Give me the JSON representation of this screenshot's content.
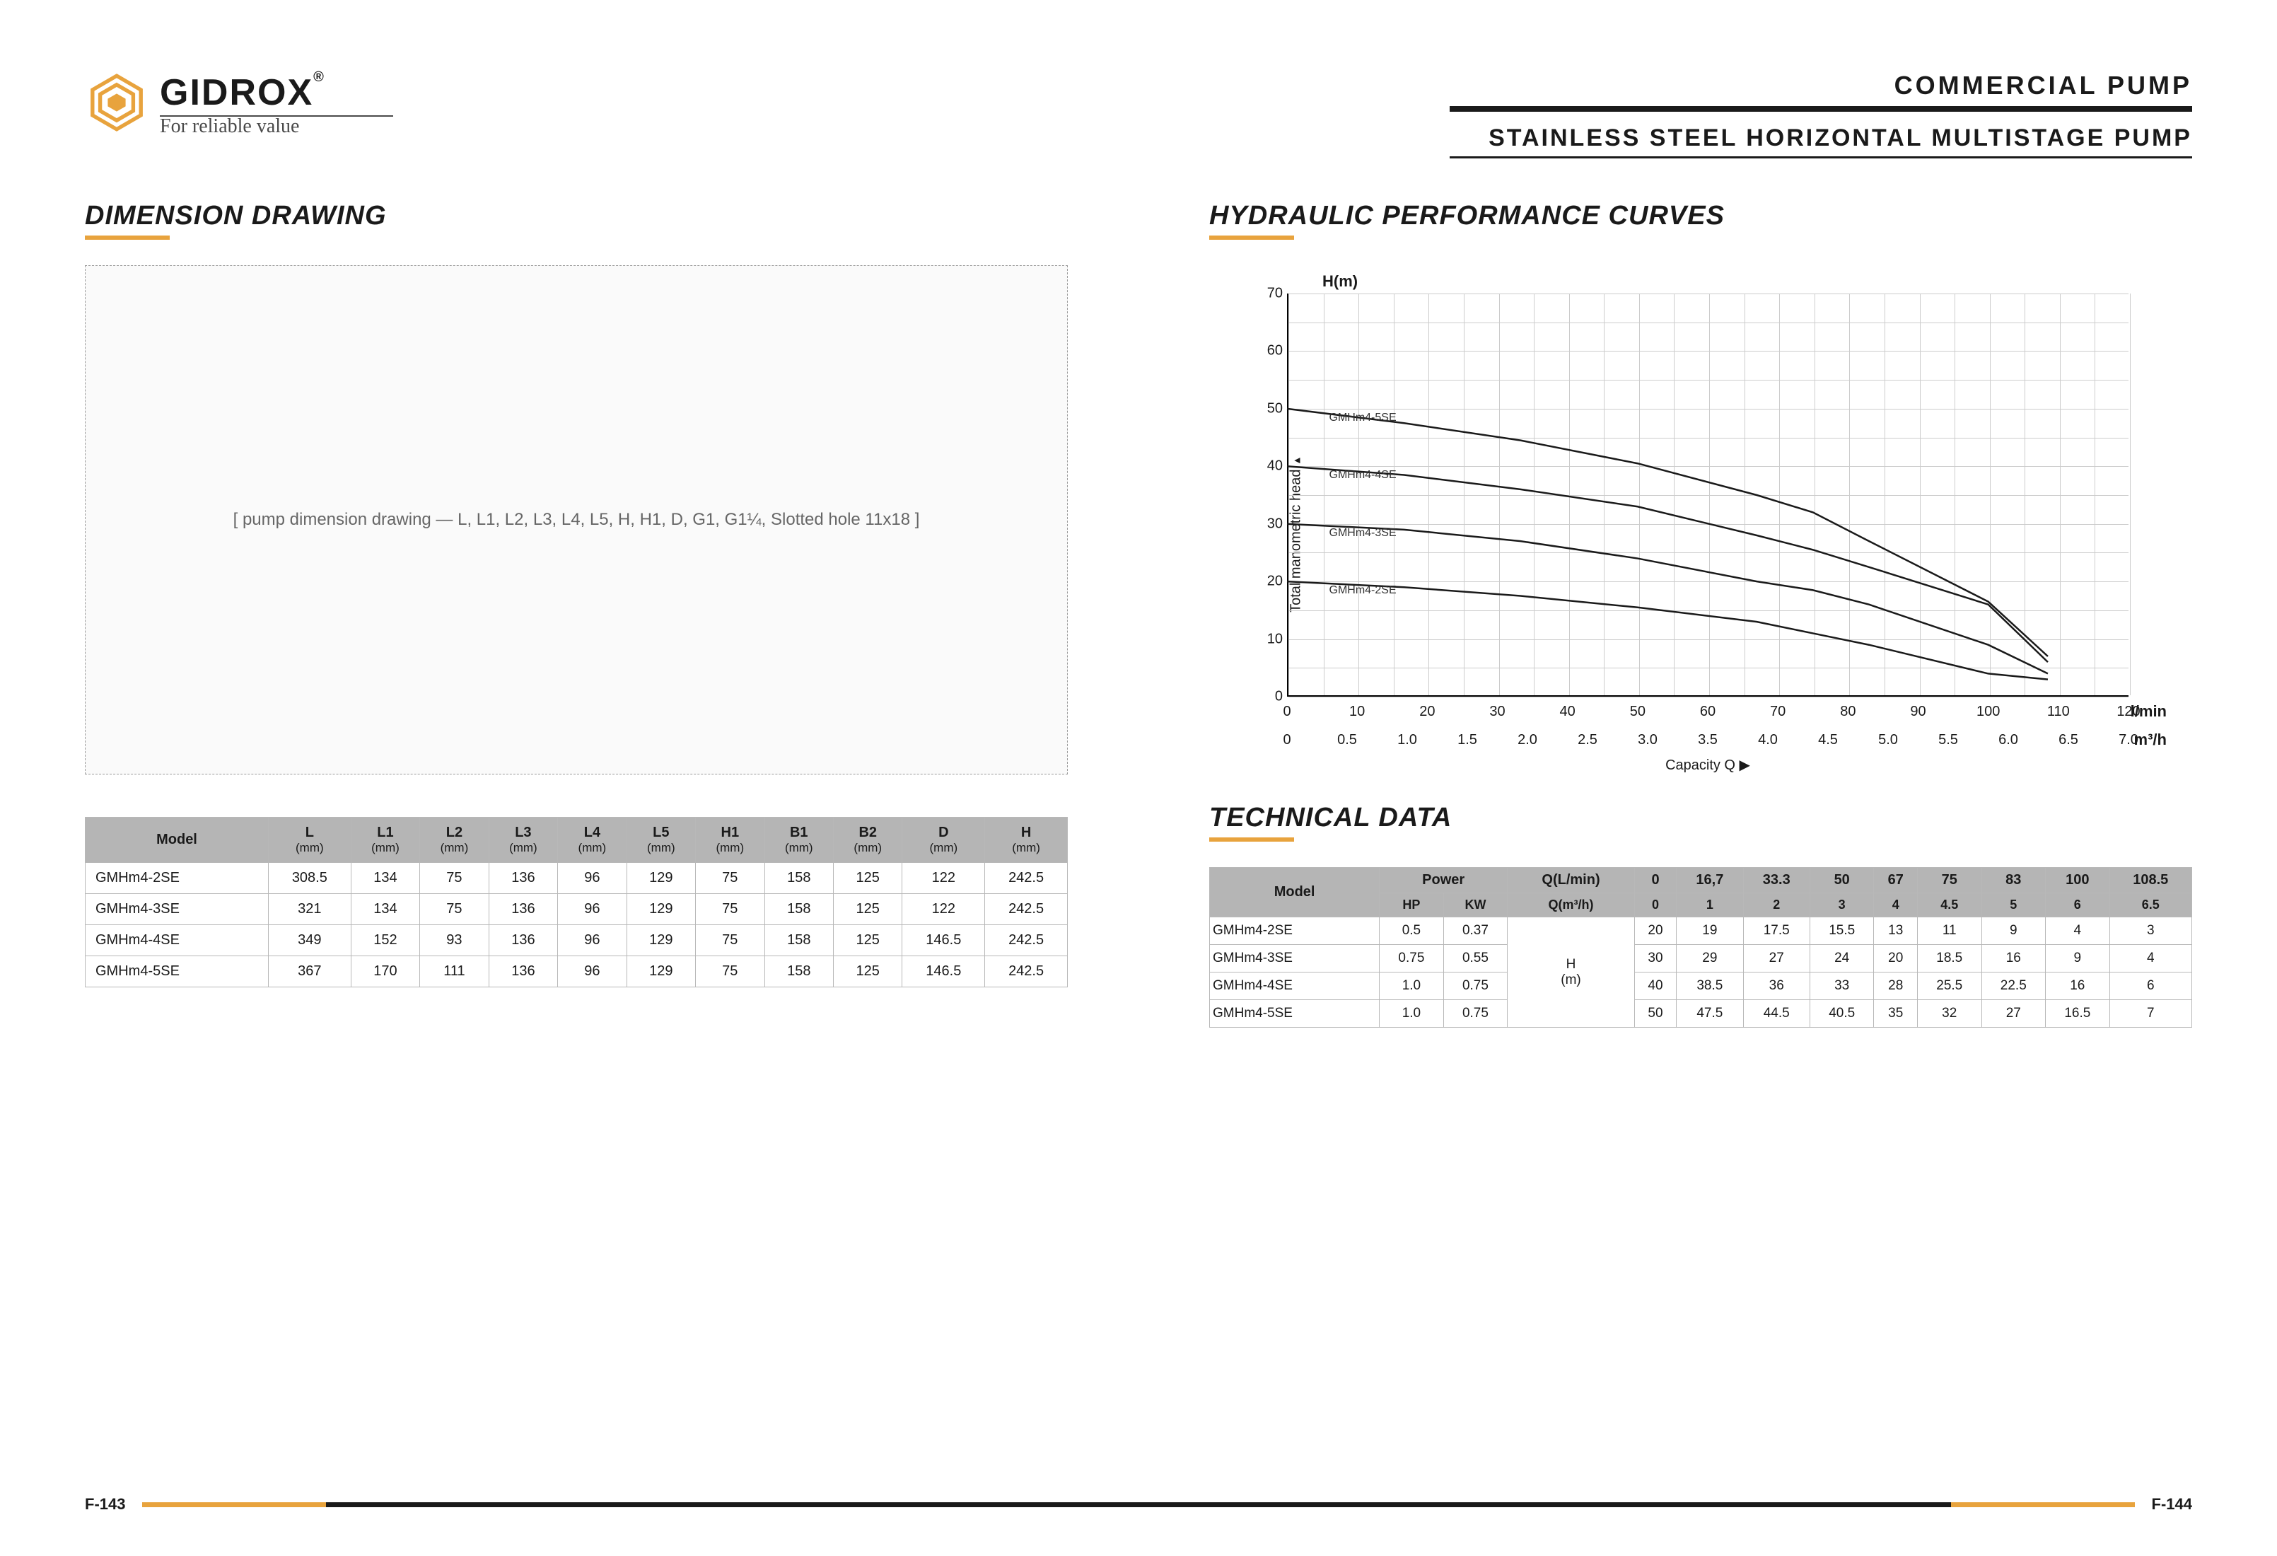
{
  "brand": {
    "name": "GIDROX",
    "reg": "®",
    "tagline": "For reliable value"
  },
  "header": {
    "category": "COMMERCIAL  PUMP",
    "subtitle": "STAINLESS STEEL HORIZONTAL  MULTISTAGE  PUMP"
  },
  "accent_color": "#e8a33d",
  "left": {
    "title": "DIMENSION DRAWING",
    "drawing_note": "[ pump dimension drawing — L, L1, L2, L3, L4, L5, H, H1, D, G1, G1¼, Slotted hole 11x18 ]",
    "table": {
      "columns": [
        "Model",
        "L",
        "L1",
        "L2",
        "L3",
        "L4",
        "L5",
        "H1",
        "B1",
        "B2",
        "D",
        "H"
      ],
      "unit": "(mm)",
      "rows": [
        [
          "GMHm4-2SE",
          "308.5",
          "134",
          "75",
          "136",
          "96",
          "129",
          "75",
          "158",
          "125",
          "122",
          "242.5"
        ],
        [
          "GMHm4-3SE",
          "321",
          "134",
          "75",
          "136",
          "96",
          "129",
          "75",
          "158",
          "125",
          "122",
          "242.5"
        ],
        [
          "GMHm4-4SE",
          "349",
          "152",
          "93",
          "136",
          "96",
          "129",
          "75",
          "158",
          "125",
          "146.5",
          "242.5"
        ],
        [
          "GMHm4-5SE",
          "367",
          "170",
          "111",
          "136",
          "96",
          "129",
          "75",
          "158",
          "125",
          "146.5",
          "242.5"
        ]
      ]
    }
  },
  "right": {
    "title": "HYDRAULIC PERFORMANCE CURVES",
    "chart": {
      "ytitle": "H(m)",
      "ylabel": "Total manometric head",
      "ylim": [
        0,
        70
      ],
      "ytick_step": 10,
      "x1_label": "l/min",
      "x1_lim": [
        0,
        120
      ],
      "x1_step": 10,
      "x2_label": "m³/h",
      "x2_lim": [
        0,
        7
      ],
      "x2_step": 0.5,
      "xaxis_caption": "Capacity Q  ▶",
      "grid_color": "#cccccc",
      "line_color": "#1a1a1a",
      "series": [
        {
          "name": "GMHm4-5SE",
          "label_y": 50,
          "points": [
            [
              0,
              50
            ],
            [
              16.7,
              47.5
            ],
            [
              33.3,
              44.5
            ],
            [
              50,
              40.5
            ],
            [
              67,
              35
            ],
            [
              75,
              32
            ],
            [
              83,
              27
            ],
            [
              100,
              16.5
            ],
            [
              108.5,
              7
            ]
          ]
        },
        {
          "name": "GMHm4-4SE",
          "label_y": 40,
          "points": [
            [
              0,
              40
            ],
            [
              16.7,
              38.5
            ],
            [
              33.3,
              36
            ],
            [
              50,
              33
            ],
            [
              67,
              28
            ],
            [
              75,
              25.5
            ],
            [
              83,
              22.5
            ],
            [
              100,
              16
            ],
            [
              108.5,
              6
            ]
          ]
        },
        {
          "name": "GMHm4-3SE",
          "label_y": 30,
          "points": [
            [
              0,
              30
            ],
            [
              16.7,
              29
            ],
            [
              33.3,
              27
            ],
            [
              50,
              24
            ],
            [
              67,
              20
            ],
            [
              75,
              18.5
            ],
            [
              83,
              16
            ],
            [
              100,
              9
            ],
            [
              108.5,
              4
            ]
          ]
        },
        {
          "name": "GMHm4-2SE",
          "label_y": 20,
          "points": [
            [
              0,
              20
            ],
            [
              16.7,
              19
            ],
            [
              33.3,
              17.5
            ],
            [
              50,
              15.5
            ],
            [
              67,
              13
            ],
            [
              75,
              11
            ],
            [
              83,
              9
            ],
            [
              100,
              4
            ],
            [
              108.5,
              3
            ]
          ]
        }
      ]
    },
    "tech_title": "TECHNICAL DATA",
    "tech_table": {
      "power_header": "Power",
      "hp": "HP",
      "kw": "KW",
      "q_lmin": "Q(L/min)",
      "q_m3h": "Q(m³/h)",
      "h_unit": "H\n(m)",
      "flow_lmin": [
        "0",
        "16,7",
        "33.3",
        "50",
        "67",
        "75",
        "83",
        "100",
        "108.5"
      ],
      "flow_m3h": [
        "0",
        "1",
        "2",
        "3",
        "4",
        "4.5",
        "5",
        "6",
        "6.5"
      ],
      "rows": [
        {
          "model": "GMHm4-2SE",
          "hp": "0.5",
          "kw": "0.37",
          "h": [
            "20",
            "19",
            "17.5",
            "15.5",
            "13",
            "11",
            "9",
            "4",
            "3"
          ]
        },
        {
          "model": "GMHm4-3SE",
          "hp": "0.75",
          "kw": "0.55",
          "h": [
            "30",
            "29",
            "27",
            "24",
            "20",
            "18.5",
            "16",
            "9",
            "4"
          ]
        },
        {
          "model": "GMHm4-4SE",
          "hp": "1.0",
          "kw": "0.75",
          "h": [
            "40",
            "38.5",
            "36",
            "33",
            "28",
            "25.5",
            "22.5",
            "16",
            "6"
          ]
        },
        {
          "model": "GMHm4-5SE",
          "hp": "1.0",
          "kw": "0.75",
          "h": [
            "50",
            "47.5",
            "44.5",
            "40.5",
            "35",
            "32",
            "27",
            "16.5",
            "7"
          ]
        }
      ]
    }
  },
  "footer": {
    "left": "F-143",
    "right": "F-144"
  }
}
